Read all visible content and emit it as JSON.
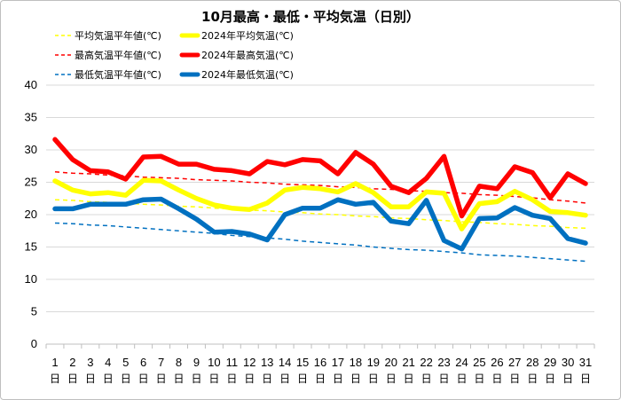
{
  "chart_data": {
    "type": "line",
    "title": "10月最高・最低・平均気温（日別）",
    "x": [
      1,
      2,
      3,
      4,
      5,
      6,
      7,
      8,
      9,
      10,
      11,
      12,
      13,
      14,
      15,
      16,
      17,
      18,
      19,
      20,
      21,
      22,
      23,
      24,
      25,
      26,
      27,
      28,
      29,
      30,
      31
    ],
    "x_suffix": "日",
    "ylim": [
      0,
      40
    ],
    "yticks": [
      0,
      5,
      10,
      15,
      20,
      25,
      30,
      35,
      40
    ],
    "grid": true,
    "legend_position": "top",
    "series": [
      {
        "name": "平均気温平年値(℃)",
        "color": "#ffff00",
        "style": "dashed",
        "values": [
          22.3,
          22.2,
          22.0,
          21.9,
          21.8,
          21.6,
          21.5,
          21.3,
          21.2,
          21.0,
          20.9,
          20.7,
          20.6,
          20.4,
          20.3,
          20.1,
          20.0,
          19.8,
          19.7,
          19.5,
          19.4,
          19.2,
          19.1,
          18.9,
          18.8,
          18.6,
          18.5,
          18.3,
          18.2,
          18.0,
          17.9
        ]
      },
      {
        "name": "2024年平均気温(℃)",
        "color": "#ffff00",
        "style": "solid",
        "values": [
          25.2,
          23.8,
          23.2,
          23.4,
          23.0,
          25.3,
          25.2,
          23.8,
          22.5,
          21.5,
          21.0,
          20.8,
          21.8,
          23.8,
          24.2,
          24.0,
          23.5,
          24.8,
          23.4,
          21.2,
          21.2,
          23.5,
          23.3,
          17.8,
          21.7,
          22.0,
          23.6,
          22.3,
          20.5,
          20.3,
          19.9
        ]
      },
      {
        "name": "最高気温平年値(℃)",
        "color": "#ff0000",
        "style": "dashed",
        "values": [
          26.6,
          26.4,
          26.3,
          26.1,
          26.0,
          25.8,
          25.7,
          25.6,
          25.4,
          25.3,
          25.2,
          25.0,
          24.9,
          24.7,
          24.6,
          24.5,
          24.3,
          24.2,
          24.0,
          23.9,
          23.7,
          23.6,
          23.4,
          23.3,
          23.1,
          23.0,
          22.8,
          22.6,
          22.3,
          22.1,
          21.8
        ]
      },
      {
        "name": "2024年最高気温(℃)",
        "color": "#ff0000",
        "style": "solid",
        "values": [
          31.6,
          28.5,
          26.8,
          26.6,
          25.5,
          28.9,
          29.0,
          27.8,
          27.8,
          27.0,
          26.8,
          26.3,
          28.2,
          27.7,
          28.5,
          28.3,
          26.3,
          29.6,
          27.8,
          24.4,
          23.4,
          25.6,
          29.0,
          19.8,
          24.4,
          24.0,
          27.4,
          26.5,
          22.6,
          26.3,
          24.8
        ]
      },
      {
        "name": "最低気温平年値(℃)",
        "color": "#0070c0",
        "style": "dashed",
        "values": [
          18.7,
          18.6,
          18.4,
          18.3,
          18.1,
          17.9,
          17.7,
          17.5,
          17.3,
          17.1,
          16.8,
          16.6,
          16.4,
          16.2,
          15.9,
          15.7,
          15.5,
          15.3,
          15.0,
          14.8,
          14.6,
          14.5,
          14.3,
          14.1,
          13.8,
          13.7,
          13.6,
          13.4,
          13.2,
          13.0,
          12.8
        ]
      },
      {
        "name": "2024年最低気温(℃)",
        "color": "#0070c0",
        "style": "solid",
        "values": [
          20.9,
          20.9,
          21.6,
          21.6,
          21.6,
          22.3,
          22.4,
          20.9,
          19.3,
          17.3,
          17.4,
          17.0,
          16.1,
          20.0,
          21.0,
          21.0,
          22.3,
          21.6,
          21.9,
          19.0,
          18.6,
          22.2,
          16.0,
          14.7,
          19.4,
          19.5,
          21.1,
          19.9,
          19.4,
          16.3,
          15.6
        ]
      }
    ]
  }
}
